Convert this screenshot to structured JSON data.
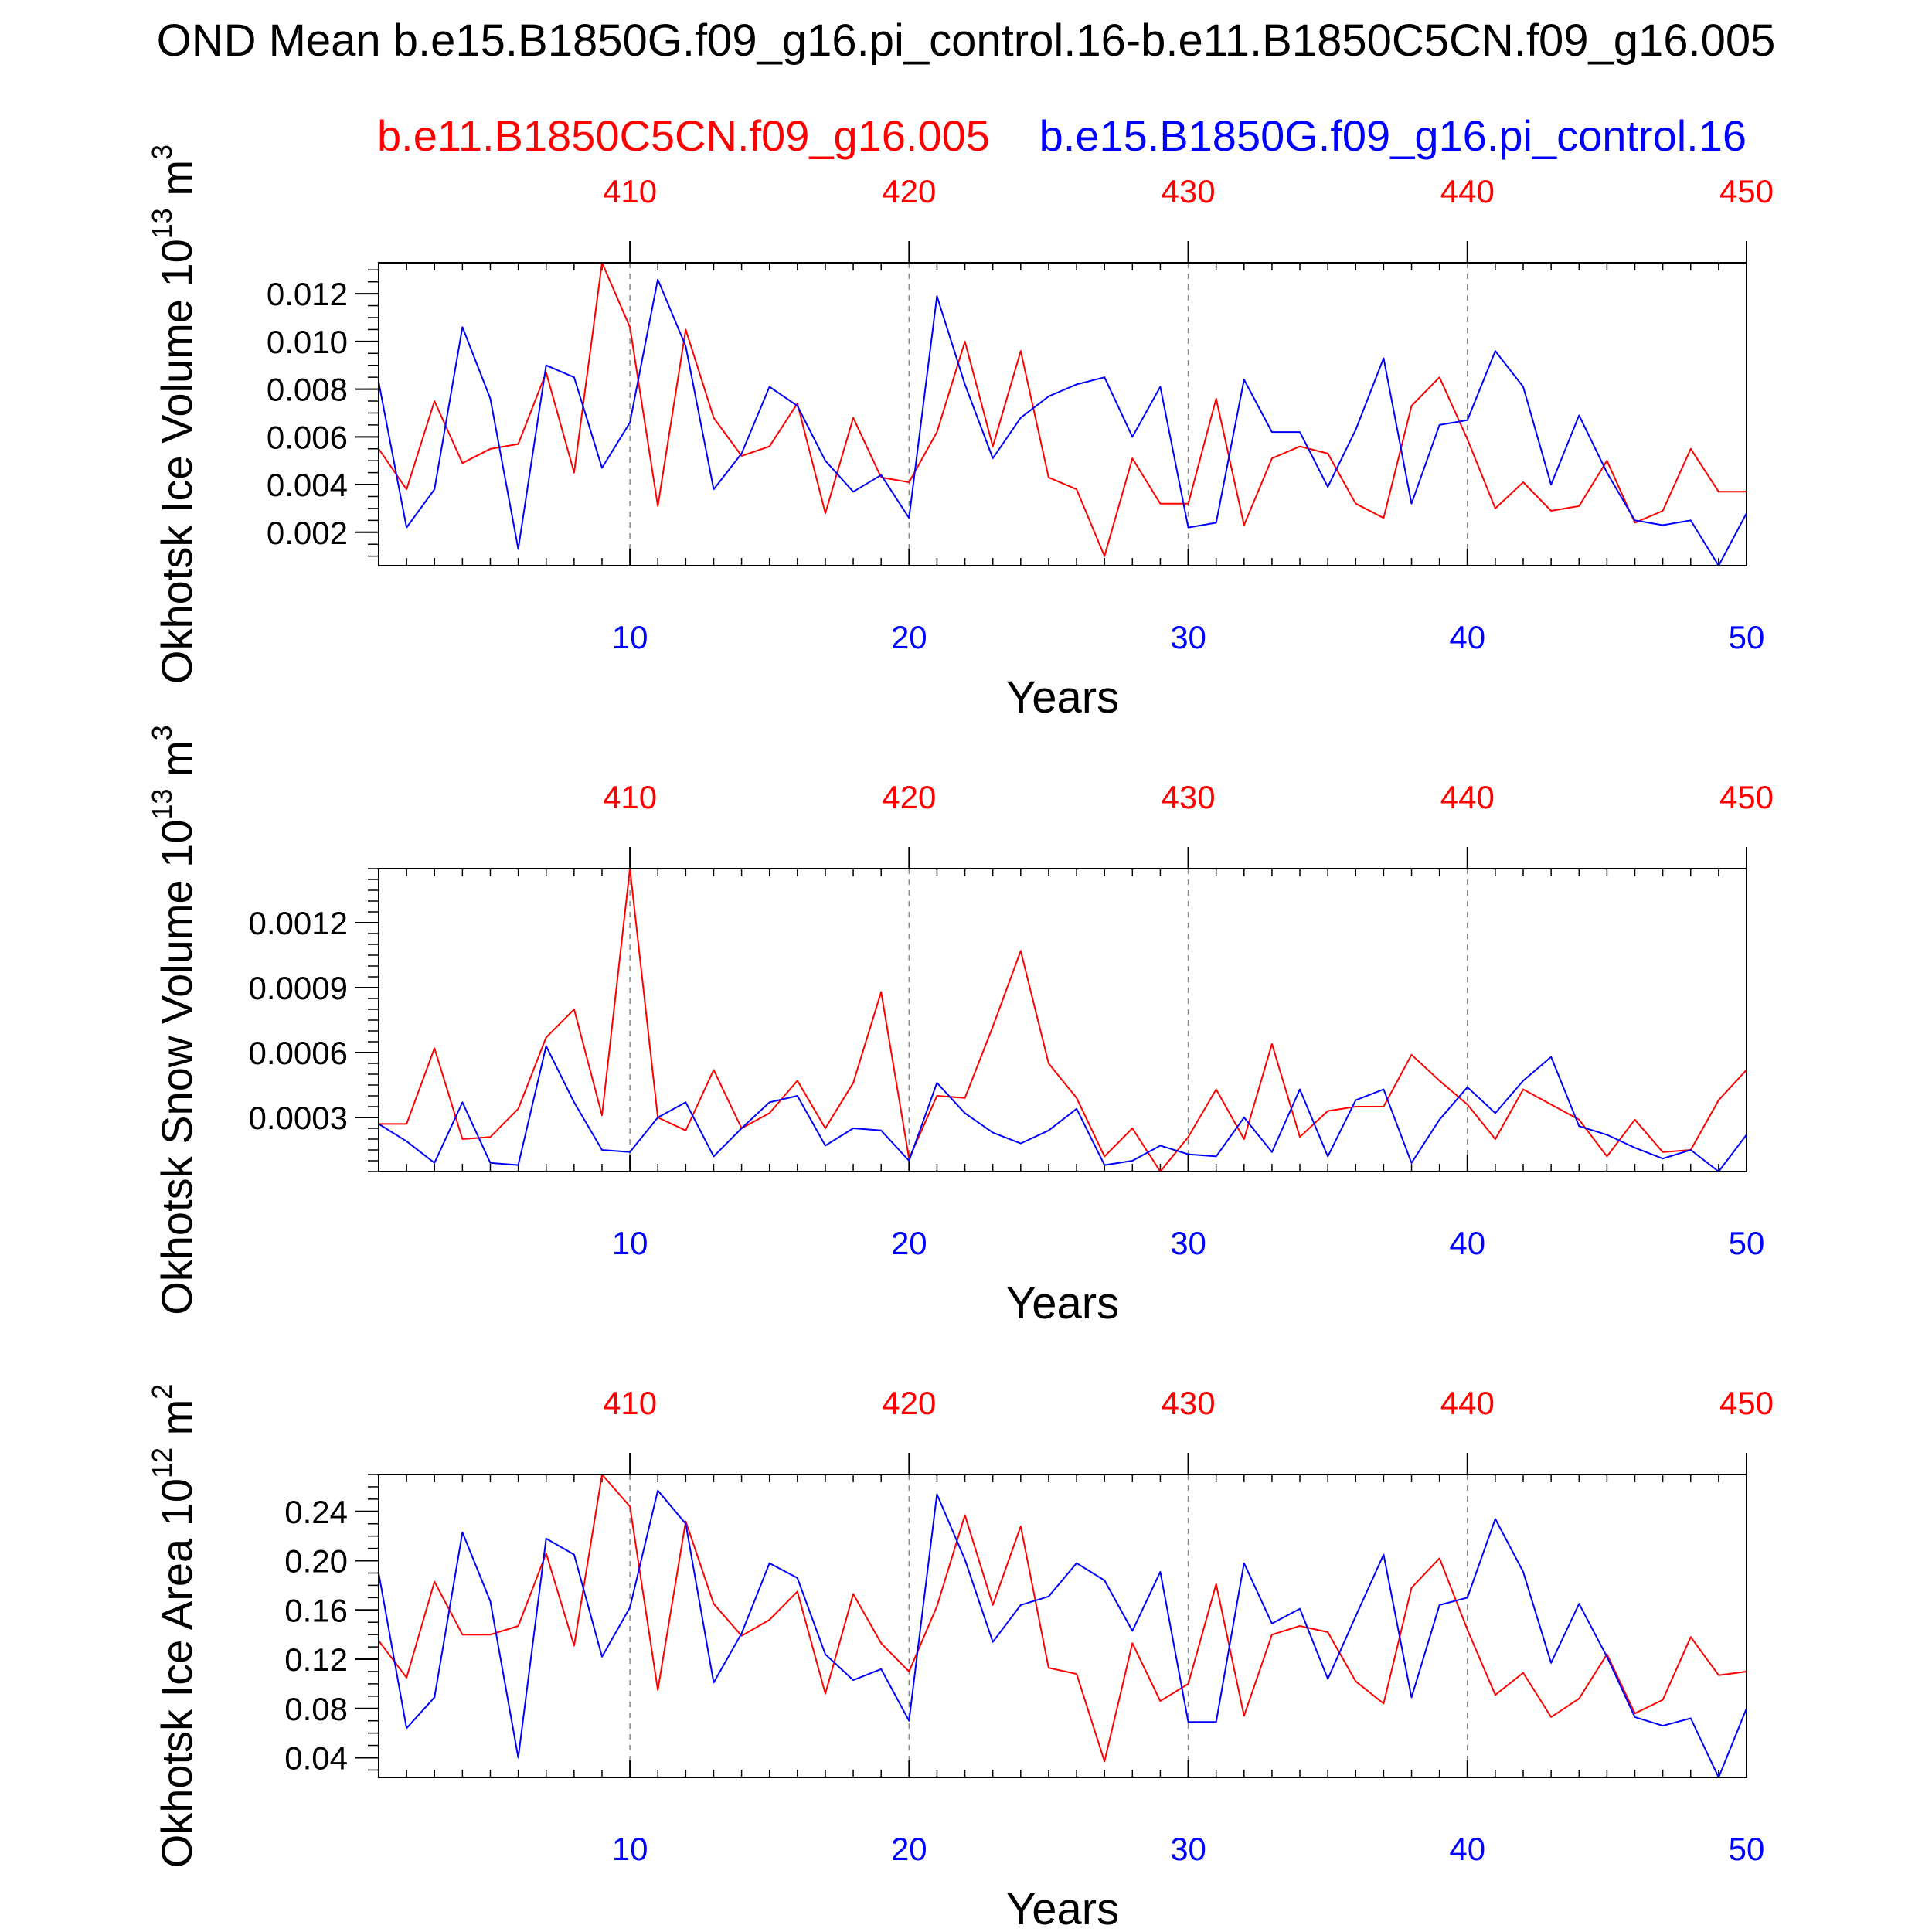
{
  "colors": {
    "case1": "#ff0000",
    "case2": "#0000ff",
    "axis": "#000000",
    "grid": "#888888"
  },
  "titles": {
    "main": "OND Mean b.e15.B1850G.f09_g16.pi_control.16-b.e11.B1850C5CN.f09_g16.005",
    "case1": "b.e11.B1850C5CN.f09_g16.005",
    "case2": "b.e15.B1850G.f09_g16.pi_control.16"
  },
  "chart_data": [
    {
      "type": "line",
      "ylabel": "Okhotsk Ice Volume 10",
      "ylabel_exp": "13",
      "ylabel_unit": " m",
      "ylabel_unit_exp": "3",
      "xlabel": "Years",
      "xlim": [
        1,
        50
      ],
      "xlim_top": [
        401,
        450
      ],
      "ylim": [
        0.0006,
        0.0133
      ],
      "xticks": [
        "10",
        "20",
        "30",
        "40",
        "50"
      ],
      "xticks_top": [
        "410",
        "420",
        "430",
        "440",
        "450"
      ],
      "yticks": [
        "0.002",
        "0.004",
        "0.006",
        "0.008",
        "0.010",
        "0.012"
      ],
      "ytick_values": [
        0.002,
        0.004,
        0.006,
        0.008,
        0.01,
        0.012
      ],
      "yminor_step": 0.0005,
      "series": [
        {
          "name": "b.e11.B1850C5CN.f09_g16.005",
          "color": "#ff0000",
          "values": [
            0.0055,
            0.0038,
            0.0075,
            0.0049,
            0.0055,
            0.0057,
            0.0087,
            0.0045,
            0.0133,
            0.0106,
            0.0031,
            0.0105,
            0.0068,
            0.0052,
            0.0056,
            0.0074,
            0.0028,
            0.0068,
            0.0043,
            0.0041,
            0.0062,
            0.01,
            0.0056,
            0.0096,
            0.0043,
            0.0038,
            0.001,
            0.0051,
            0.0032,
            0.0032,
            0.0076,
            0.0023,
            0.0051,
            0.0056,
            0.0053,
            0.0032,
            0.0026,
            0.0073,
            0.0085,
            0.0059,
            0.003,
            0.0041,
            0.0029,
            0.0031,
            0.005,
            0.0024,
            0.0029,
            0.0055,
            0.0037,
            0.0037
          ]
        },
        {
          "name": "b.e15.B1850G.f09_g16.pi_control.16",
          "color": "#0000ff",
          "values": [
            0.0083,
            0.0022,
            0.0038,
            0.0106,
            0.0076,
            0.0013,
            0.009,
            0.0085,
            0.0047,
            0.0066,
            0.0126,
            0.0098,
            0.0038,
            0.0053,
            0.0081,
            0.0073,
            0.005,
            0.0037,
            0.0044,
            0.0026,
            0.0119,
            0.0082,
            0.0051,
            0.0068,
            0.0077,
            0.0082,
            0.0085,
            0.006,
            0.0081,
            0.0022,
            0.0024,
            0.0084,
            0.0062,
            0.0062,
            0.0039,
            0.0063,
            0.0093,
            0.0032,
            0.0065,
            0.0067,
            0.0096,
            0.0081,
            0.004,
            0.0069,
            0.0045,
            0.0025,
            0.0023,
            0.0025,
            0.0006,
            0.0028
          ]
        }
      ]
    },
    {
      "type": "line",
      "ylabel": "Okhotsk Snow Volume 10",
      "ylabel_exp": "13",
      "ylabel_unit": " m",
      "ylabel_unit_exp": "3",
      "xlabel": "Years",
      "xlim": [
        1,
        50
      ],
      "xlim_top": [
        401,
        450
      ],
      "ylim": [
        5e-05,
        0.00145
      ],
      "xticks": [
        "10",
        "20",
        "30",
        "40",
        "50"
      ],
      "xticks_top": [
        "410",
        "420",
        "430",
        "440",
        "450"
      ],
      "yticks": [
        "0.0003",
        "0.0006",
        "0.0009",
        "0.0012"
      ],
      "ytick_values": [
        0.0003,
        0.0006,
        0.0009,
        0.0012
      ],
      "yminor_step": 5e-05,
      "series": [
        {
          "name": "b.e11.B1850C5CN.f09_g16.005",
          "color": "#ff0000",
          "values": [
            0.00027,
            0.00027,
            0.00062,
            0.0002,
            0.00021,
            0.00034,
            0.00067,
            0.0008,
            0.00031,
            0.00145,
            0.0003,
            0.00024,
            0.00052,
            0.00025,
            0.00032,
            0.00047,
            0.00025,
            0.00046,
            0.00088,
            0.00011,
            0.0004,
            0.00039,
            0.00072,
            0.00107,
            0.00055,
            0.00039,
            0.00012,
            0.00025,
            5e-05,
            0.00021,
            0.00043,
            0.0002,
            0.00064,
            0.00021,
            0.00033,
            0.00035,
            0.00035,
            0.00059,
            0.00047,
            0.00036,
            0.0002,
            0.00043,
            0.00036,
            0.00029,
            0.00012,
            0.00029,
            0.00014,
            0.00015,
            0.00038,
            0.00052
          ]
        },
        {
          "name": "b.e15.B1850G.f09_g16.pi_control.16",
          "color": "#0000ff",
          "values": [
            0.00027,
            0.00019,
            9e-05,
            0.00037,
            9e-05,
            8e-05,
            0.00063,
            0.00037,
            0.00015,
            0.00014,
            0.0003,
            0.00037,
            0.00012,
            0.00025,
            0.00037,
            0.0004,
            0.00017,
            0.00025,
            0.00024,
            0.0001,
            0.00046,
            0.00032,
            0.00023,
            0.00018,
            0.00024,
            0.00034,
            8e-05,
            0.0001,
            0.00017,
            0.00013,
            0.00012,
            0.0003,
            0.00014,
            0.00043,
            0.00012,
            0.00038,
            0.00043,
            9e-05,
            0.00029,
            0.00044,
            0.00032,
            0.00047,
            0.00058,
            0.00026,
            0.00022,
            0.00016,
            0.00011,
            0.00015,
            5e-05,
            0.00022
          ]
        }
      ]
    },
    {
      "type": "line",
      "ylabel": "Okhotsk Ice Area 10",
      "ylabel_exp": "12",
      "ylabel_unit": " m",
      "ylabel_unit_exp": "2",
      "xlabel": "Years",
      "xlim": [
        1,
        50
      ],
      "xlim_top": [
        401,
        450
      ],
      "ylim": [
        0.024,
        0.27
      ],
      "xticks": [
        "10",
        "20",
        "30",
        "40",
        "50"
      ],
      "xticks_top": [
        "410",
        "420",
        "430",
        "440",
        "450"
      ],
      "yticks": [
        "0.04",
        "0.08",
        "0.12",
        "0.16",
        "0.20",
        "0.24"
      ],
      "ytick_values": [
        0.04,
        0.08,
        0.12,
        0.16,
        0.2,
        0.24
      ],
      "yminor_step": 0.01,
      "series": [
        {
          "name": "b.e11.B1850C5CN.f09_g16.005",
          "color": "#ff0000",
          "values": [
            0.135,
            0.105,
            0.183,
            0.14,
            0.14,
            0.147,
            0.206,
            0.131,
            0.27,
            0.244,
            0.095,
            0.232,
            0.165,
            0.139,
            0.152,
            0.175,
            0.092,
            0.173,
            0.133,
            0.11,
            0.163,
            0.237,
            0.164,
            0.228,
            0.113,
            0.108,
            0.037,
            0.133,
            0.086,
            0.1,
            0.181,
            0.074,
            0.14,
            0.147,
            0.142,
            0.102,
            0.084,
            0.178,
            0.202,
            0.144,
            0.091,
            0.109,
            0.073,
            0.088,
            0.124,
            0.076,
            0.087,
            0.138,
            0.107,
            0.11
          ]
        },
        {
          "name": "b.e15.B1850G.f09_g16.pi_control.16",
          "color": "#0000ff",
          "values": [
            0.19,
            0.064,
            0.089,
            0.223,
            0.167,
            0.04,
            0.218,
            0.205,
            0.122,
            0.162,
            0.257,
            0.23,
            0.101,
            0.141,
            0.198,
            0.186,
            0.124,
            0.103,
            0.112,
            0.07,
            0.254,
            0.201,
            0.134,
            0.164,
            0.171,
            0.198,
            0.184,
            0.143,
            0.191,
            0.069,
            0.069,
            0.198,
            0.149,
            0.161,
            0.104,
            0.155,
            0.205,
            0.089,
            0.164,
            0.17,
            0.234,
            0.191,
            0.117,
            0.165,
            0.122,
            0.073,
            0.066,
            0.072,
            0.024,
            0.08
          ]
        }
      ]
    }
  ]
}
